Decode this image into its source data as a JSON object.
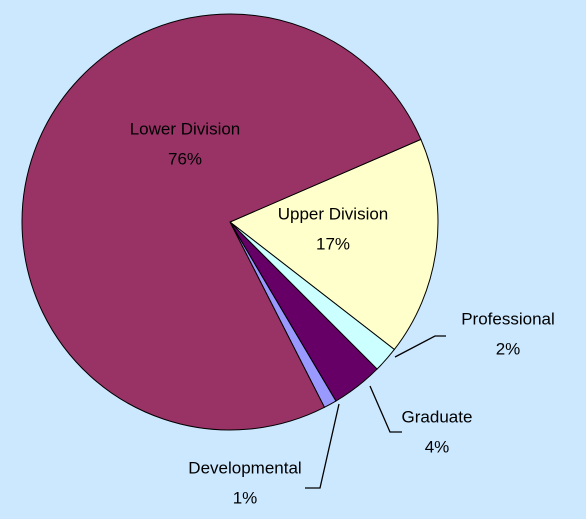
{
  "chart_data": {
    "type": "pie",
    "categories": [
      "Upper Division",
      "Professional",
      "Graduate",
      "Developmental",
      "Lower Division"
    ],
    "values": [
      17,
      2,
      4,
      1,
      76
    ],
    "value_labels": [
      "17%",
      "2%",
      "4%",
      "1%",
      "76%"
    ],
    "colors": [
      "#ffffcc",
      "#ccffff",
      "#660066",
      "#9999ff",
      "#993366"
    ]
  }
}
